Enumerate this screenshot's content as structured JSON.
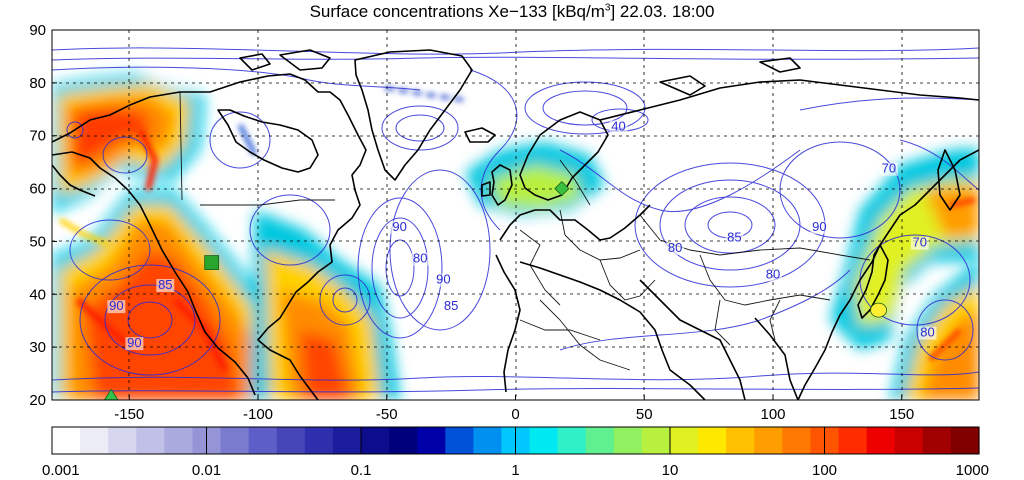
{
  "title": {
    "prefix": "Surface concentrations Xe−133 [kBq/m",
    "sup": "3",
    "suffix": "] 22.03. 18:00"
  },
  "axes": {
    "xlim": [
      -180,
      180
    ],
    "ylim": [
      20,
      90
    ],
    "xticks": [
      -150,
      -100,
      -50,
      0,
      50,
      100,
      150
    ],
    "yticks": [
      20,
      30,
      40,
      50,
      60,
      70,
      80,
      90
    ],
    "grid": true
  },
  "contour_labels": [
    {
      "text": "40",
      "lon": 40,
      "lat": 71
    },
    {
      "text": "70",
      "lon": 145,
      "lat": 63
    },
    {
      "text": "70",
      "lon": 157,
      "lat": 49
    },
    {
      "text": "90",
      "lon": 118,
      "lat": 52
    },
    {
      "text": "80",
      "lon": 62,
      "lat": 48
    },
    {
      "text": "85",
      "lon": 85,
      "lat": 50
    },
    {
      "text": "80",
      "lon": 100,
      "lat": 43
    },
    {
      "text": "90",
      "lon": -45,
      "lat": 52
    },
    {
      "text": "90",
      "lon": -28,
      "lat": 42
    },
    {
      "text": "85",
      "lon": -25,
      "lat": 37
    },
    {
      "text": "80",
      "lon": -37,
      "lat": 46
    },
    {
      "text": "90",
      "lon": -155,
      "lat": 37
    },
    {
      "text": "85",
      "lon": -136,
      "lat": 41
    },
    {
      "text": "90",
      "lon": -148,
      "lat": 30
    },
    {
      "text": "80",
      "lon": 160,
      "lat": 32
    }
  ],
  "colorbar": {
    "scale": "log",
    "ticks": [
      "0.001",
      "0.01",
      "0.1",
      "1",
      "10",
      "100",
      "1000"
    ],
    "colors": [
      "#ffffff",
      "#ececf6",
      "#d6d6ef",
      "#c0c0e8",
      "#aaaadf",
      "#9494d6",
      "#7a7ace",
      "#5e5ec8",
      "#4646b8",
      "#2f2fae",
      "#1c1c9f",
      "#0c0c8d",
      "#00007c",
      "#0000a8",
      "#0050d8",
      "#0090f0",
      "#00c8ff",
      "#00e8f0",
      "#30f0c8",
      "#60f090",
      "#90f060",
      "#b8f040",
      "#e0f020",
      "#ffe800",
      "#ffc000",
      "#ff9c00",
      "#ff7800",
      "#ff5400",
      "#ff2c00",
      "#ee0000",
      "#c80000",
      "#a00000",
      "#800000"
    ]
  },
  "markers": [
    {
      "name": "green-square",
      "lon": -118,
      "lat": 46,
      "color": "#27a52c",
      "shape": "square"
    },
    {
      "name": "yellow-circle",
      "lon": 141,
      "lat": 37,
      "color": "#ffee33",
      "shape": "circle"
    },
    {
      "name": "green-triangle",
      "lon": -157,
      "lat": 20.5,
      "color": "#35c24a",
      "shape": "triangle"
    },
    {
      "name": "green-diamond",
      "lon": 18,
      "lat": 60,
      "color": "#39c240",
      "shape": "diamond"
    }
  ],
  "colors": {
    "contour": "#2a2ad6",
    "coast": "#000000",
    "grid": "#000000"
  }
}
